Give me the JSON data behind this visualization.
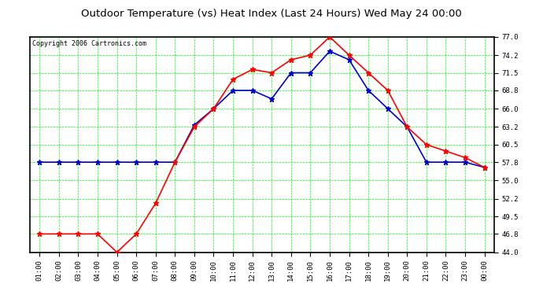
{
  "title": "Outdoor Temperature (vs) Heat Index (Last 24 Hours) Wed May 24 00:00",
  "copyright": "Copyright 2006 Cartronics.com",
  "x_labels": [
    "01:00",
    "02:00",
    "03:00",
    "04:00",
    "05:00",
    "06:00",
    "07:00",
    "08:00",
    "09:00",
    "10:00",
    "11:00",
    "12:00",
    "13:00",
    "14:00",
    "15:00",
    "16:00",
    "17:00",
    "18:00",
    "19:00",
    "20:00",
    "21:00",
    "22:00",
    "23:00",
    "00:00"
  ],
  "temp_values": [
    46.8,
    46.8,
    46.8,
    46.8,
    44.0,
    46.8,
    51.5,
    57.8,
    63.2,
    66.0,
    70.5,
    72.0,
    71.5,
    73.5,
    74.2,
    77.0,
    74.2,
    71.5,
    68.8,
    63.2,
    60.5,
    59.5,
    58.5,
    57.0
  ],
  "heat_values": [
    57.8,
    57.8,
    57.8,
    57.8,
    57.8,
    57.8,
    57.8,
    57.8,
    63.5,
    66.0,
    68.8,
    68.8,
    67.5,
    71.5,
    71.5,
    74.8,
    73.5,
    68.8,
    66.0,
    63.2,
    57.8,
    57.8,
    57.8,
    57.0
  ],
  "temp_color": "#ff0000",
  "heat_color": "#0000cc",
  "plot_bg": "#ffffff",
  "fig_bg": "#ffffff",
  "grid_color": "#00ff00",
  "border_color": "#000000",
  "title_color": "#000000",
  "copyright_color": "#000000",
  "ylim_min": 44.0,
  "ylim_max": 77.0,
  "yticks": [
    44.0,
    46.8,
    49.5,
    52.2,
    55.0,
    57.8,
    60.5,
    63.2,
    66.0,
    68.8,
    71.5,
    74.2,
    77.0
  ],
  "title_fontsize": 9.5,
  "copyright_fontsize": 6.0,
  "tick_fontsize": 6.5,
  "marker": "*",
  "markersize": 5,
  "linewidth": 1.2,
  "grid_linewidth": 0.5,
  "grid_linestyle": "--"
}
